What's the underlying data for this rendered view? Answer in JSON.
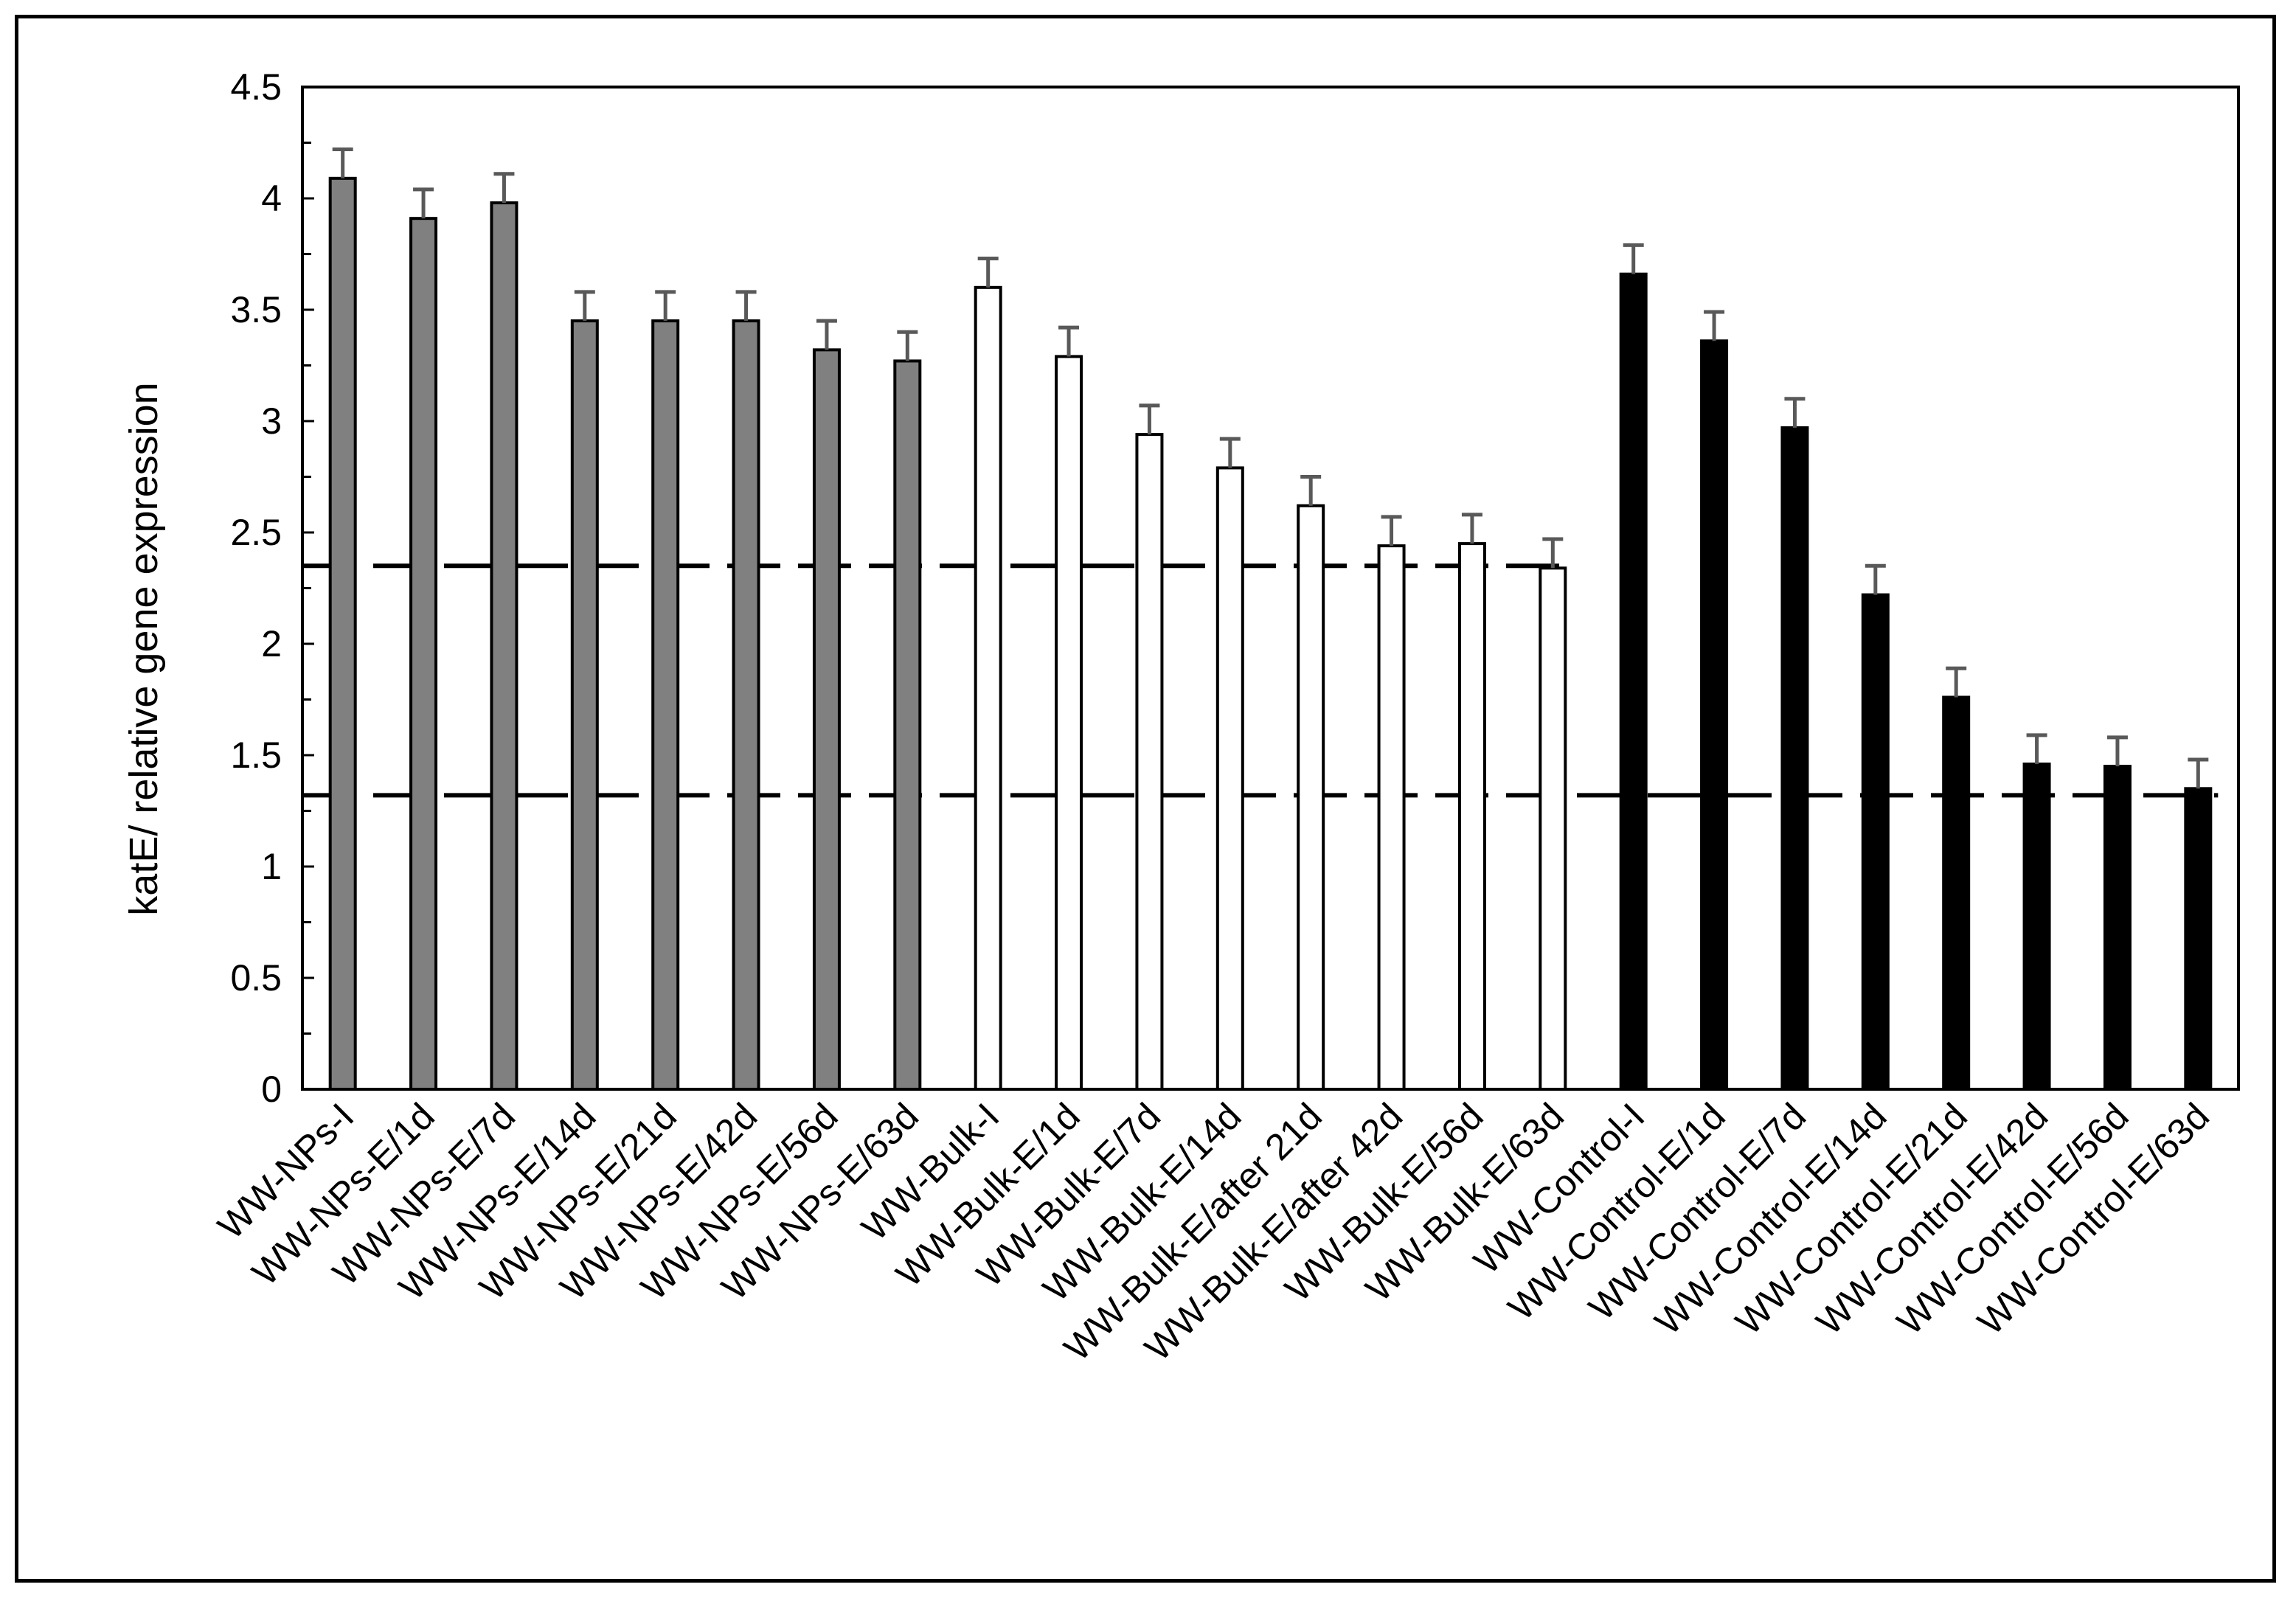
{
  "chart_data": {
    "type": "bar",
    "title": "",
    "xlabel": "",
    "ylabel": "katE/ relative gene expression",
    "ylim": [
      0,
      4.5
    ],
    "yticks": [
      "0",
      "0.5",
      "1",
      "1.5",
      "2",
      "2.5",
      "3",
      "3.5",
      "4",
      "4.5"
    ],
    "grid": false,
    "categories": [
      "WW-NPs-I",
      "WW-NPs-E/1d",
      "WW-NPs-E/7d",
      "WW-NPs-E/14d",
      "WW-NPs-E/21d",
      "WW-NPs-E/42d",
      "WW-NPs-E/56d",
      "WW-NPs-E/63d",
      "WW-Bulk-I",
      "WW-Bulk-E/1d",
      "WW-Bulk-E/7d",
      "WW-Bulk-E/14d",
      "WW-Bulk-E/after 21d",
      "WW-Bulk-E/after 42d",
      "WW-Bulk-E/56d",
      "WW-Bulk-E/63d",
      "WW-Control-I",
      "WW-Control-E/1d",
      "WW-Control-E/7d",
      "WW-Control-E/14d",
      "WW-Control-E/21d",
      "WW-Control-E/42d",
      "WW-Control-E/56d",
      "WW-Control-E/63d"
    ],
    "values": [
      4.09,
      3.91,
      3.98,
      3.45,
      3.45,
      3.45,
      3.32,
      3.27,
      3.6,
      3.29,
      2.94,
      2.79,
      2.62,
      2.44,
      2.45,
      2.34,
      3.66,
      3.36,
      2.97,
      2.22,
      1.76,
      1.46,
      1.45,
      1.35
    ],
    "errors": [
      0.13,
      0.13,
      0.13,
      0.13,
      0.13,
      0.13,
      0.13,
      0.13,
      0.13,
      0.13,
      0.13,
      0.13,
      0.13,
      0.13,
      0.13,
      0.13,
      0.13,
      0.13,
      0.13,
      0.13,
      0.13,
      0.13,
      0.13,
      0.13
    ],
    "groups": [
      {
        "fill": "#808080",
        "start": 0,
        "end": 7
      },
      {
        "fill": "#ffffff",
        "start": 8,
        "end": 15
      },
      {
        "fill": "#000000",
        "start": 16,
        "end": 23
      }
    ],
    "reference_lines": [
      {
        "y": 2.35,
        "from": "WW-NPs-I",
        "to": "WW-Bulk-E/63d",
        "style": "dashed"
      },
      {
        "y": 1.32,
        "from": "WW-NPs-I",
        "to": "WW-Control-E/63d",
        "style": "dashed"
      }
    ],
    "error_bar_color": "#595959"
  }
}
